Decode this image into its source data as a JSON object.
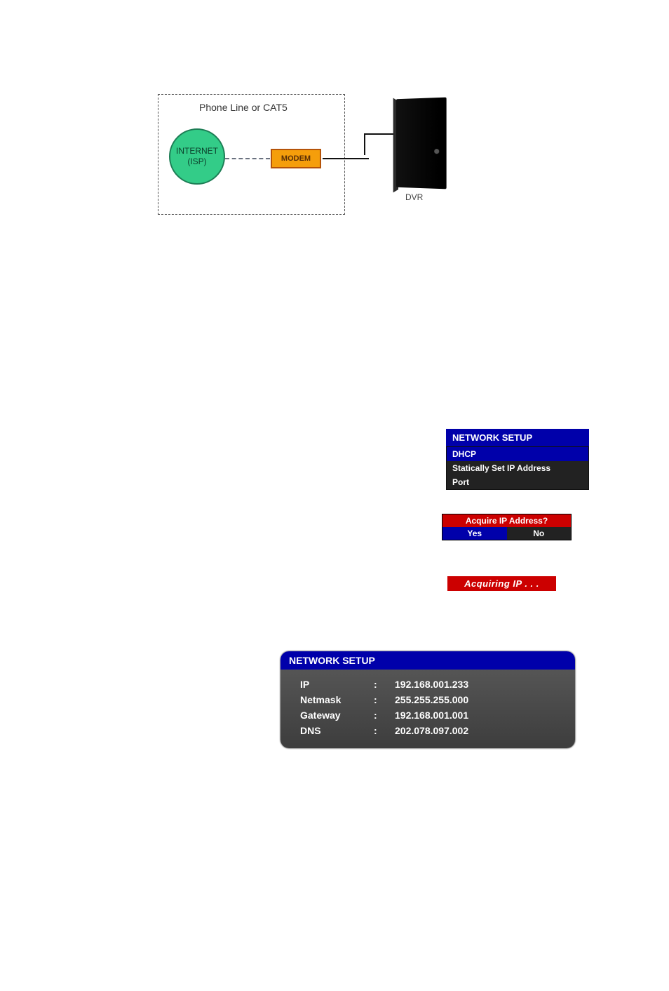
{
  "diagram": {
    "box_title": "Phone Line or CAT5",
    "internet_line1": "INTERNET",
    "internet_line2": "(ISP)",
    "modem_label": "MODEM",
    "dvr_label": "DVR",
    "colors": {
      "internet_fill": "#33cc88",
      "internet_border": "#1d7d55",
      "modem_fill": "#f59e0b",
      "modem_border": "#b45309",
      "dvr_fill": "#000000",
      "dash_border": "#555555"
    }
  },
  "network_menu": {
    "title": "NETWORK SETUP",
    "items": [
      "DHCP",
      "Statically Set IP Address",
      "Port"
    ],
    "selected_index": 0,
    "colors": {
      "header_bg": "#0000aa",
      "body_bg": "#222222",
      "text": "#ffffff"
    }
  },
  "acquire_dialog": {
    "title": "Acquire IP Address?",
    "yes": "Yes",
    "no": "No",
    "selected": "yes",
    "colors": {
      "header_bg": "#cc0000",
      "body_bg": "#222222",
      "sel_bg": "#0000aa"
    }
  },
  "acquiring_banner": {
    "text": "Acquiring IP . . .",
    "bg": "#cc0000"
  },
  "network_values": {
    "title": "NETWORK SETUP",
    "rows": [
      {
        "label": "IP",
        "value": "192.168.001.233"
      },
      {
        "label": "Netmask",
        "value": "255.255.255.000"
      },
      {
        "label": "Gateway",
        "value": "192.168.001.001"
      },
      {
        "label": "DNS",
        "value": "202.078.097.002"
      }
    ],
    "colors": {
      "header_bg": "#0000aa",
      "body_bg_top": "#555555",
      "body_bg_bottom": "#3d3d3d",
      "text": "#ffffff"
    }
  }
}
